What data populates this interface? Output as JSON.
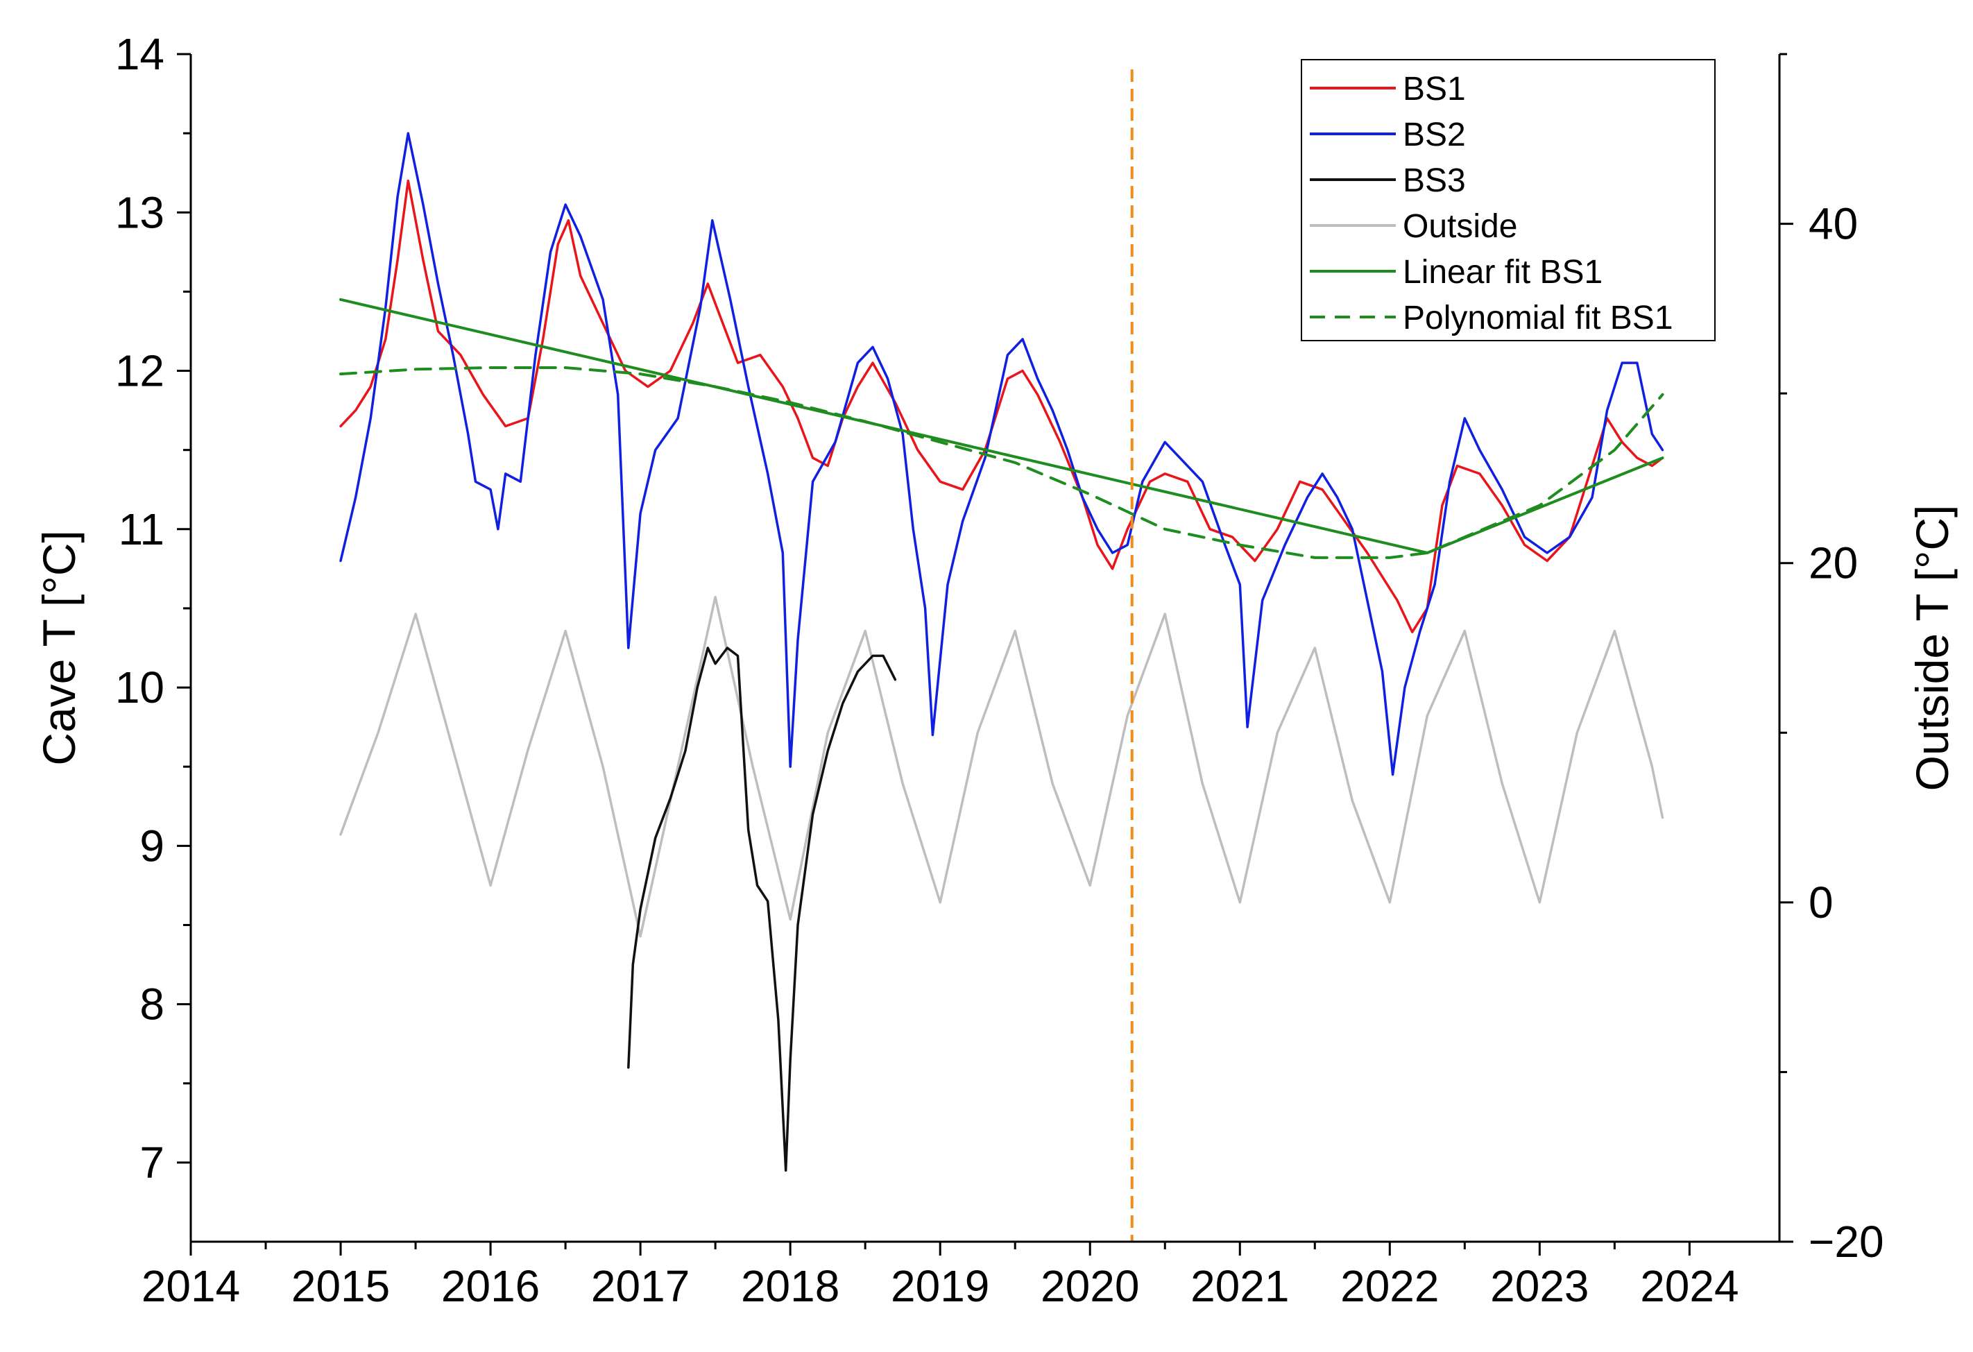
{
  "chart_data": {
    "type": "line",
    "title": "",
    "xlabel": "",
    "ylabel": "Cave T [°C]",
    "y2label": "Outside T [°C]",
    "xlim": [
      2014,
      2024.6
    ],
    "ylim": [
      6.5,
      14
    ],
    "y2lim": [
      -20,
      50
    ],
    "xticks": [
      "2014",
      "2015",
      "2016",
      "2017",
      "2018",
      "2019",
      "2020",
      "2021",
      "2022",
      "2023",
      "2024"
    ],
    "yticks": [
      "7",
      "8",
      "9",
      "10",
      "11",
      "12",
      "13",
      "14"
    ],
    "y2ticks": [
      "−20",
      "0",
      "20",
      "40"
    ],
    "vline": {
      "x": 2020.28,
      "color": "#F08C1E",
      "style": "dashed"
    },
    "legend": {
      "position": "top-right"
    },
    "colors": {
      "bs1": "#E8151B",
      "bs2": "#1020E0",
      "bs3": "#111111",
      "outside": "#BEBEBE",
      "fit": "#1E8C1E"
    },
    "series": [
      {
        "name": "BS1",
        "axis": "left",
        "style": "solid",
        "x": [
          2015.0,
          2015.1,
          2015.2,
          2015.3,
          2015.38,
          2015.45,
          2015.55,
          2015.65,
          2015.8,
          2015.95,
          2016.1,
          2016.25,
          2016.35,
          2016.45,
          2016.52,
          2016.6,
          2016.75,
          2016.9,
          2017.05,
          2017.2,
          2017.35,
          2017.45,
          2017.55,
          2017.65,
          2017.8,
          2017.95,
          2018.05,
          2018.15,
          2018.25,
          2018.35,
          2018.45,
          2018.55,
          2018.7,
          2018.85,
          2019.0,
          2019.15,
          2019.3,
          2019.45,
          2019.55,
          2019.65,
          2019.8,
          2019.95,
          2020.05,
          2020.15,
          2020.25,
          2020.4,
          2020.5,
          2020.65,
          2020.8,
          2020.95,
          2021.1,
          2021.25,
          2021.4,
          2021.55,
          2021.7,
          2021.85,
          2021.95,
          2022.05,
          2022.15,
          2022.25,
          2022.35,
          2022.45,
          2022.6,
          2022.75,
          2022.9,
          2023.05,
          2023.2,
          2023.35,
          2023.45,
          2023.55,
          2023.65,
          2023.75,
          2023.82
        ],
        "values": [
          11.65,
          11.75,
          11.9,
          12.2,
          12.7,
          13.2,
          12.7,
          12.25,
          12.1,
          11.85,
          11.65,
          11.7,
          12.2,
          12.8,
          12.95,
          12.6,
          12.3,
          12.0,
          11.9,
          12.0,
          12.3,
          12.55,
          12.3,
          12.05,
          12.1,
          11.9,
          11.7,
          11.45,
          11.4,
          11.7,
          11.9,
          12.05,
          11.8,
          11.5,
          11.3,
          11.25,
          11.5,
          11.95,
          12.0,
          11.85,
          11.55,
          11.2,
          10.9,
          10.75,
          11.0,
          11.3,
          11.35,
          11.3,
          11.0,
          10.95,
          10.8,
          11.0,
          11.3,
          11.25,
          11.05,
          10.85,
          10.7,
          10.55,
          10.35,
          10.5,
          11.15,
          11.4,
          11.35,
          11.15,
          10.9,
          10.8,
          10.95,
          11.4,
          11.7,
          11.55,
          11.45,
          11.4,
          11.45
        ]
      },
      {
        "name": "BS2",
        "axis": "left",
        "style": "solid",
        "x": [
          2015.0,
          2015.1,
          2015.2,
          2015.3,
          2015.38,
          2015.45,
          2015.55,
          2015.65,
          2015.75,
          2015.85,
          2015.9,
          2016.0,
          2016.05,
          2016.1,
          2016.2,
          2016.3,
          2016.4,
          2016.5,
          2016.6,
          2016.75,
          2016.85,
          2016.92,
          2017.0,
          2017.1,
          2017.25,
          2017.4,
          2017.48,
          2017.6,
          2017.72,
          2017.85,
          2017.95,
          2018.0,
          2018.05,
          2018.15,
          2018.3,
          2018.45,
          2018.55,
          2018.65,
          2018.75,
          2018.82,
          2018.9,
          2018.95,
          2019.05,
          2019.15,
          2019.3,
          2019.45,
          2019.55,
          2019.65,
          2019.75,
          2019.85,
          2019.95,
          2020.05,
          2020.15,
          2020.25,
          2020.35,
          2020.5,
          2020.6,
          2020.75,
          2020.9,
          2021.0,
          2021.05,
          2021.15,
          2021.3,
          2021.45,
          2021.55,
          2021.65,
          2021.75,
          2021.85,
          2021.95,
          2022.02,
          2022.1,
          2022.2,
          2022.3,
          2022.4,
          2022.5,
          2022.6,
          2022.75,
          2022.9,
          2023.05,
          2023.2,
          2023.35,
          2023.45,
          2023.55,
          2023.65,
          2023.75,
          2023.82
        ],
        "values": [
          10.8,
          11.2,
          11.7,
          12.4,
          13.1,
          13.5,
          13.05,
          12.55,
          12.1,
          11.6,
          11.3,
          11.25,
          11.0,
          11.35,
          11.3,
          12.1,
          12.75,
          13.05,
          12.85,
          12.45,
          11.85,
          10.25,
          11.1,
          11.5,
          11.7,
          12.4,
          12.95,
          12.45,
          11.9,
          11.35,
          10.85,
          9.5,
          10.3,
          11.3,
          11.55,
          12.05,
          12.15,
          11.95,
          11.6,
          11.0,
          10.5,
          9.7,
          10.65,
          11.05,
          11.45,
          12.1,
          12.2,
          11.95,
          11.75,
          11.5,
          11.2,
          11.0,
          10.85,
          10.9,
          11.3,
          11.55,
          11.45,
          11.3,
          10.9,
          10.65,
          9.75,
          10.55,
          10.9,
          11.2,
          11.35,
          11.2,
          11.0,
          10.55,
          10.1,
          9.45,
          10.0,
          10.35,
          10.65,
          11.3,
          11.7,
          11.5,
          11.25,
          10.95,
          10.85,
          10.95,
          11.2,
          11.75,
          12.05,
          12.05,
          11.6,
          11.5
        ]
      },
      {
        "name": "BS3",
        "axis": "left",
        "style": "solid",
        "x": [
          2016.92,
          2016.95,
          2017.0,
          2017.1,
          2017.2,
          2017.3,
          2017.38,
          2017.45,
          2017.5,
          2017.58,
          2017.65,
          2017.72,
          2017.78,
          2017.85,
          2017.92,
          2017.97,
          2018.0,
          2018.05,
          2018.15,
          2018.25,
          2018.35,
          2018.45,
          2018.55,
          2018.62,
          2018.7
        ],
        "values": [
          7.6,
          8.25,
          8.6,
          9.05,
          9.3,
          9.6,
          10.0,
          10.25,
          10.15,
          10.25,
          10.2,
          9.1,
          8.75,
          8.65,
          7.9,
          6.95,
          7.65,
          8.5,
          9.2,
          9.6,
          9.9,
          10.1,
          10.2,
          10.2,
          10.05
        ]
      },
      {
        "name": "Outside",
        "axis": "right",
        "style": "solid",
        "x": [
          2015.0,
          2015.25,
          2015.5,
          2015.75,
          2016.0,
          2016.25,
          2016.5,
          2016.75,
          2017.0,
          2017.25,
          2017.5,
          2017.75,
          2018.0,
          2018.25,
          2018.5,
          2018.75,
          2019.0,
          2019.25,
          2019.5,
          2019.75,
          2020.0,
          2020.25,
          2020.5,
          2020.75,
          2021.0,
          2021.25,
          2021.5,
          2021.75,
          2022.0,
          2022.25,
          2022.5,
          2022.75,
          2023.0,
          2023.25,
          2023.5,
          2023.75,
          2023.82
        ],
        "values": [
          4,
          10,
          17,
          9,
          1,
          9,
          16,
          8,
          -2,
          8,
          18,
          8,
          -1,
          10,
          16,
          7,
          0,
          10,
          16,
          7,
          1,
          11,
          17,
          7,
          0,
          10,
          15,
          6,
          0,
          11,
          16,
          7,
          0,
          10,
          16,
          8,
          5
        ]
      },
      {
        "name": "Linear fit BS1",
        "axis": "left",
        "style": "solid",
        "x": [
          2015.0,
          2022.25,
          2023.82
        ],
        "values": [
          12.45,
          10.85,
          11.45
        ]
      },
      {
        "name": "Polynomial fit BS1",
        "axis": "left",
        "style": "dashed",
        "x": [
          2015.0,
          2015.5,
          2016.0,
          2016.5,
          2017.0,
          2017.5,
          2018.0,
          2018.5,
          2019.0,
          2019.5,
          2020.0,
          2020.5,
          2021.0,
          2021.5,
          2022.0,
          2022.25,
          2022.5,
          2023.0,
          2023.5,
          2023.82
        ],
        "values": [
          11.98,
          12.01,
          12.02,
          12.02,
          11.98,
          11.9,
          11.8,
          11.68,
          11.55,
          11.42,
          11.22,
          11.0,
          10.9,
          10.82,
          10.82,
          10.85,
          10.95,
          11.15,
          11.5,
          11.85
        ]
      }
    ]
  }
}
